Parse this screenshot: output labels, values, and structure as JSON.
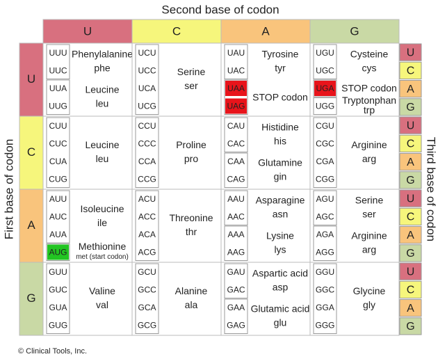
{
  "axis_titles": {
    "top": "Second base of codon",
    "left": "First base of codon",
    "right": "Third base of codon"
  },
  "columns": [
    {
      "label": "U",
      "color": "#d8707f"
    },
    {
      "label": "C",
      "color": "#f6f67c"
    },
    {
      "label": "A",
      "color": "#f9c47c"
    },
    {
      "label": "G",
      "color": "#c9d9a5"
    }
  ],
  "rows": [
    {
      "label": "U",
      "color": "#d8707f",
      "third": [
        "U",
        "C",
        "A",
        "G"
      ],
      "cells": [
        {
          "groups": [
            {
              "codons": [
                "UUU",
                "UUC"
              ],
              "name": "Phenylalanine",
              "abbr": "phe"
            },
            {
              "codons": [
                "UUA",
                "UUG"
              ],
              "name": "Leucine",
              "abbr": "leu"
            }
          ]
        },
        {
          "groups": [
            {
              "codons": [
                "UCU",
                "UCC",
                "UCA",
                "UCG"
              ],
              "name": "Serine",
              "abbr": "ser"
            }
          ]
        },
        {
          "groups": [
            {
              "codons": [
                "UAU",
                "UAC"
              ],
              "name": "Tyrosine",
              "abbr": "tyr"
            },
            {
              "codons": [
                "UAA",
                "UAG"
              ],
              "name": "STOP codon",
              "color": "#e8141b"
            }
          ]
        },
        {
          "groups": [
            {
              "codons": [
                "UGU",
                "UGC"
              ],
              "name": "Cysteine",
              "abbr": "cys"
            },
            {
              "codons": [
                "UGA"
              ],
              "name": "STOP codon",
              "color": "#e8141b"
            },
            {
              "codons": [
                "UGG"
              ],
              "name": "Tryptonphan",
              "abbr": "trp"
            }
          ]
        }
      ]
    },
    {
      "label": "C",
      "color": "#f6f67c",
      "third": [
        "U",
        "C",
        "A",
        "G"
      ],
      "cells": [
        {
          "groups": [
            {
              "codons": [
                "CUU",
                "CUC",
                "CUA",
                "CUG"
              ],
              "name": "Leucine",
              "abbr": "leu"
            }
          ]
        },
        {
          "groups": [
            {
              "codons": [
                "CCU",
                "CCC",
                "CCA",
                "CCG"
              ],
              "name": "Proline",
              "abbr": "pro"
            }
          ]
        },
        {
          "groups": [
            {
              "codons": [
                "CAU",
                "CAC"
              ],
              "name": "Histidine",
              "abbr": "his"
            },
            {
              "codons": [
                "CAA",
                "CAG"
              ],
              "name": "Glutamine",
              "abbr": "gin"
            }
          ]
        },
        {
          "groups": [
            {
              "codons": [
                "CGU",
                "CGC",
                "CGA",
                "CGG"
              ],
              "name": "Arginine",
              "abbr": "arg"
            }
          ]
        }
      ]
    },
    {
      "label": "A",
      "color": "#f9c47c",
      "third": [
        "U",
        "C",
        "A",
        "G"
      ],
      "cells": [
        {
          "groups": [
            {
              "codons": [
                "AUU",
                "AUC",
                "AUA"
              ],
              "name": "Isoleucine",
              "abbr": "ile"
            },
            {
              "codons": [
                "AUG"
              ],
              "name": "Methionine",
              "abbr": "met (start codon)",
              "color": "#22c522"
            }
          ]
        },
        {
          "groups": [
            {
              "codons": [
                "ACU",
                "ACC",
                "ACA",
                "ACG"
              ],
              "name": "Threonine",
              "abbr": "thr"
            }
          ]
        },
        {
          "groups": [
            {
              "codons": [
                "AAU",
                "AAC"
              ],
              "name": "Asparagine",
              "abbr": "asn"
            },
            {
              "codons": [
                "AAA",
                "AAG"
              ],
              "name": "Lysine",
              "abbr": "lys"
            }
          ]
        },
        {
          "groups": [
            {
              "codons": [
                "AGU",
                "AGC"
              ],
              "name": "Serine",
              "abbr": "ser"
            },
            {
              "codons": [
                "AGA",
                "AGG"
              ],
              "name": "Arginine",
              "abbr": "arg"
            }
          ]
        }
      ]
    },
    {
      "label": "G",
      "color": "#c9d9a5",
      "third": [
        "U",
        "C",
        "A",
        "G"
      ],
      "cells": [
        {
          "groups": [
            {
              "codons": [
                "GUU",
                "GUC",
                "GUA",
                "GUG"
              ],
              "name": "Valine",
              "abbr": "val"
            }
          ]
        },
        {
          "groups": [
            {
              "codons": [
                "GCU",
                "GCC",
                "GCA",
                "GCG"
              ],
              "name": "Alanine",
              "abbr": "ala"
            }
          ]
        },
        {
          "groups": [
            {
              "codons": [
                "GAU",
                "GAC"
              ],
              "name": "Aspartic acid",
              "abbr": "asp"
            },
            {
              "codons": [
                "GAA",
                "GAG"
              ],
              "name": "Glutamic acid",
              "abbr": "glu"
            }
          ]
        },
        {
          "groups": [
            {
              "codons": [
                "GGU",
                "GGC",
                "GGA",
                "GGG"
              ],
              "name": "Glycine",
              "abbr": "gly"
            }
          ]
        }
      ]
    }
  ],
  "footer": "© Clinical Tools, Inc."
}
